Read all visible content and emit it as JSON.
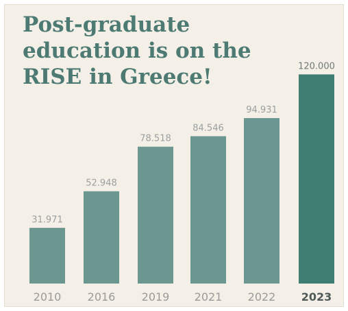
{
  "chart_data": {
    "type": "bar",
    "title_lines": [
      "Post-graduate",
      "education is on the",
      "RISE in Greece!"
    ],
    "categories": [
      "2010",
      "2016",
      "2019",
      "2021",
      "2022",
      "2023"
    ],
    "values": [
      31971,
      52948,
      78518,
      84546,
      94931,
      120000
    ],
    "value_labels": [
      "31.971",
      "52.948",
      "78.518",
      "84.546",
      "94.931",
      "120.000"
    ],
    "xlabel": "",
    "ylabel": "",
    "ylim": [
      0,
      130000
    ],
    "grid": false,
    "legend": "none",
    "colors": {
      "bar": "#6c9791",
      "bar_highlight": "#3f7d72",
      "label": "#9aa0a0",
      "label_highlight": "#6f7a78",
      "tick": "#9a9a9a",
      "tick_highlight": "#4f5a58",
      "title": "#4d7b74"
    }
  }
}
